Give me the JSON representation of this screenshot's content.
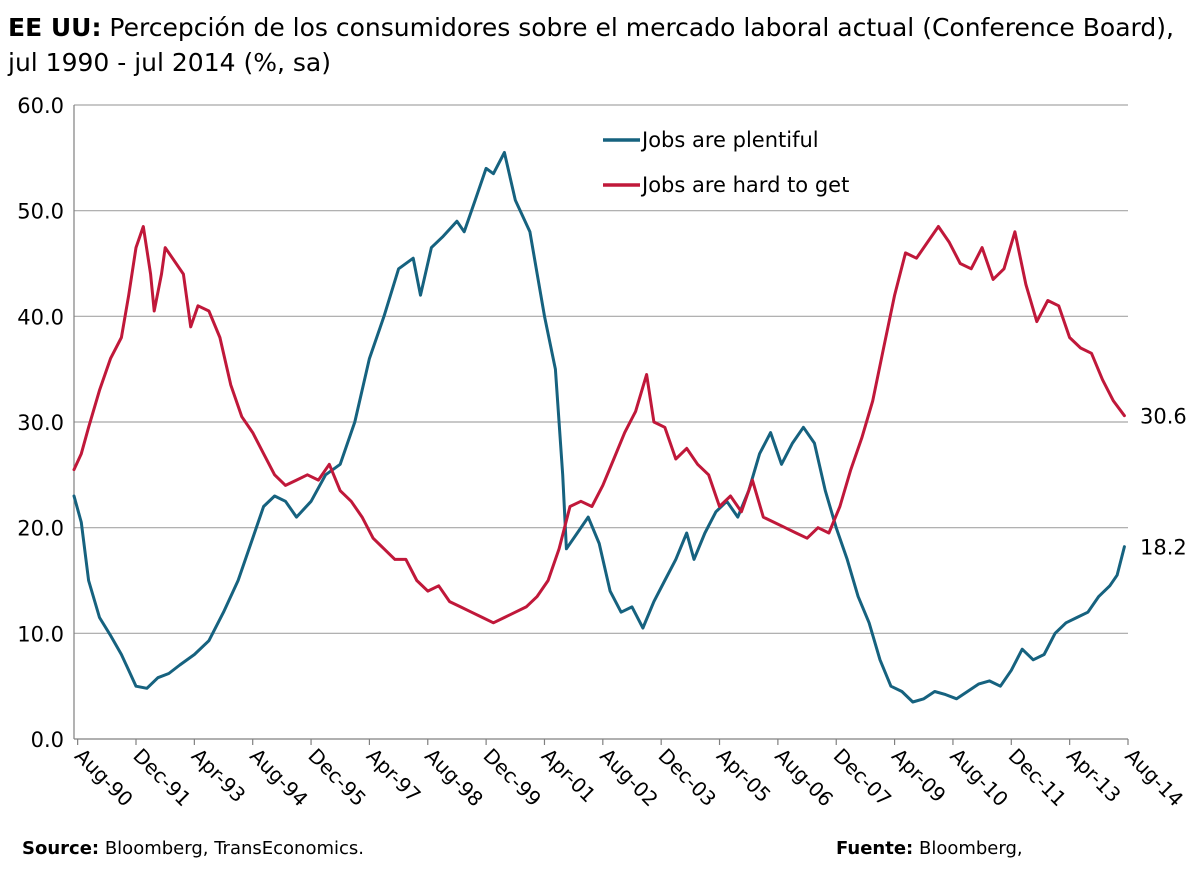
{
  "header": {
    "title_bold": "EE UU:",
    "title_rest": " Percepción de los consumidores sobre el mercado laboral actual (Conference Board), jul 1990 - jul 2014 (%, sa)"
  },
  "footer": {
    "source_label": "Source:",
    "source_text": " Bloomberg, TransEconomics.",
    "fuente_label": "Fuente:",
    "fuente_text": " Bloomberg,"
  },
  "colors": {
    "plentiful": "#16627f",
    "hard": "#c0183a",
    "grid": "#a6a6a6"
  },
  "chart_data": {
    "type": "line",
    "title": "EE UU: Percepción de los consumidores sobre el mercado laboral actual (Conference Board), jul 1990 - jul 2014 (%, sa)",
    "xlabel": "",
    "ylabel": "",
    "x_start": "1990-07",
    "x_end": "2014-07",
    "ylim": [
      0,
      60
    ],
    "yticks": [
      0,
      10,
      20,
      30,
      40,
      50,
      60
    ],
    "ytick_labels": [
      "0.0",
      "10.0",
      "20.0",
      "30.0",
      "40.0",
      "50.0",
      "60.0"
    ],
    "xticks": [
      {
        "date": "1990-08",
        "label": "Aug-90"
      },
      {
        "date": "1991-12",
        "label": "Dec-91"
      },
      {
        "date": "1993-04",
        "label": "Apr-93"
      },
      {
        "date": "1994-08",
        "label": "Aug-94"
      },
      {
        "date": "1995-12",
        "label": "Dec-95"
      },
      {
        "date": "1997-04",
        "label": "Apr-97"
      },
      {
        "date": "1998-08",
        "label": "Aug-98"
      },
      {
        "date": "1999-12",
        "label": "Dec-99"
      },
      {
        "date": "2001-04",
        "label": "Apr-01"
      },
      {
        "date": "2002-08",
        "label": "Aug-02"
      },
      {
        "date": "2003-12",
        "label": "Dec-03"
      },
      {
        "date": "2005-04",
        "label": "Apr-05"
      },
      {
        "date": "2006-08",
        "label": "Aug-06"
      },
      {
        "date": "2007-12",
        "label": "Dec-07"
      },
      {
        "date": "2009-04",
        "label": "Apr-09"
      },
      {
        "date": "2010-08",
        "label": "Aug-10"
      },
      {
        "date": "2011-12",
        "label": "Dec-11"
      },
      {
        "date": "2013-04",
        "label": "Apr-13"
      },
      {
        "date": "2014-08",
        "label": "Aug-14"
      }
    ],
    "grid": true,
    "legend_position": "top-center",
    "series": [
      {
        "name": "Jobs are plentiful",
        "color_key": "plentiful",
        "end_label": "18.2",
        "points": [
          [
            "1990-07",
            23.0
          ],
          [
            "1990-09",
            20.5
          ],
          [
            "1990-11",
            15.0
          ],
          [
            "1991-02",
            11.5
          ],
          [
            "1991-05",
            9.8
          ],
          [
            "1991-08",
            8.0
          ],
          [
            "1991-10",
            6.5
          ],
          [
            "1991-12",
            5.0
          ],
          [
            "1992-03",
            4.8
          ],
          [
            "1992-06",
            5.8
          ],
          [
            "1992-09",
            6.2
          ],
          [
            "1992-12",
            7.0
          ],
          [
            "1993-04",
            8.0
          ],
          [
            "1993-08",
            9.3
          ],
          [
            "1993-12",
            12.0
          ],
          [
            "1994-04",
            15.0
          ],
          [
            "1994-08",
            19.0
          ],
          [
            "1994-11",
            22.0
          ],
          [
            "1995-02",
            23.0
          ],
          [
            "1995-05",
            22.5
          ],
          [
            "1995-08",
            21.0
          ],
          [
            "1995-12",
            22.5
          ],
          [
            "1996-04",
            25.0
          ],
          [
            "1996-08",
            26.0
          ],
          [
            "1996-12",
            30.0
          ],
          [
            "1997-04",
            36.0
          ],
          [
            "1997-08",
            40.0
          ],
          [
            "1997-12",
            44.5
          ],
          [
            "1998-04",
            45.5
          ],
          [
            "1998-06",
            42.0
          ],
          [
            "1998-09",
            46.5
          ],
          [
            "1998-12",
            47.5
          ],
          [
            "1999-04",
            49.0
          ],
          [
            "1999-06",
            48.0
          ],
          [
            "1999-09",
            51.0
          ],
          [
            "1999-12",
            54.0
          ],
          [
            "2000-02",
            53.5
          ],
          [
            "2000-05",
            55.5
          ],
          [
            "2000-08",
            51.0
          ],
          [
            "2000-12",
            48.0
          ],
          [
            "2001-02",
            44.0
          ],
          [
            "2001-04",
            40.0
          ],
          [
            "2001-07",
            35.0
          ],
          [
            "2001-09",
            25.0
          ],
          [
            "2001-10",
            18.0
          ],
          [
            "2002-01",
            19.5
          ],
          [
            "2002-04",
            21.0
          ],
          [
            "2002-07",
            18.5
          ],
          [
            "2002-10",
            14.0
          ],
          [
            "2003-01",
            12.0
          ],
          [
            "2003-04",
            12.5
          ],
          [
            "2003-07",
            10.5
          ],
          [
            "2003-10",
            13.0
          ],
          [
            "2004-01",
            15.0
          ],
          [
            "2004-04",
            17.0
          ],
          [
            "2004-07",
            19.5
          ],
          [
            "2004-09",
            17.0
          ],
          [
            "2004-12",
            19.5
          ],
          [
            "2005-03",
            21.5
          ],
          [
            "2005-06",
            22.5
          ],
          [
            "2005-09",
            21.0
          ],
          [
            "2005-12",
            23.5
          ],
          [
            "2006-03",
            27.0
          ],
          [
            "2006-06",
            29.0
          ],
          [
            "2006-09",
            26.0
          ],
          [
            "2006-12",
            28.0
          ],
          [
            "2007-03",
            29.5
          ],
          [
            "2007-06",
            28.0
          ],
          [
            "2007-09",
            23.5
          ],
          [
            "2007-12",
            20.0
          ],
          [
            "2008-03",
            17.0
          ],
          [
            "2008-06",
            13.5
          ],
          [
            "2008-09",
            11.0
          ],
          [
            "2008-12",
            7.5
          ],
          [
            "2009-03",
            5.0
          ],
          [
            "2009-06",
            4.5
          ],
          [
            "2009-09",
            3.5
          ],
          [
            "2009-12",
            3.8
          ],
          [
            "2010-03",
            4.5
          ],
          [
            "2010-06",
            4.2
          ],
          [
            "2010-09",
            3.8
          ],
          [
            "2010-12",
            4.5
          ],
          [
            "2011-03",
            5.2
          ],
          [
            "2011-06",
            5.5
          ],
          [
            "2011-09",
            5.0
          ],
          [
            "2011-12",
            6.5
          ],
          [
            "2012-03",
            8.5
          ],
          [
            "2012-06",
            7.5
          ],
          [
            "2012-09",
            8.0
          ],
          [
            "2012-12",
            10.0
          ],
          [
            "2013-03",
            11.0
          ],
          [
            "2013-06",
            11.5
          ],
          [
            "2013-09",
            12.0
          ],
          [
            "2013-12",
            13.5
          ],
          [
            "2014-03",
            14.5
          ],
          [
            "2014-05",
            15.5
          ],
          [
            "2014-07",
            18.2
          ]
        ]
      },
      {
        "name": "Jobs are hard to get",
        "color_key": "hard",
        "end_label": "30.6",
        "points": [
          [
            "1990-07",
            25.5
          ],
          [
            "1990-09",
            27.0
          ],
          [
            "1990-11",
            29.5
          ],
          [
            "1991-02",
            33.0
          ],
          [
            "1991-05",
            36.0
          ],
          [
            "1991-08",
            38.0
          ],
          [
            "1991-10",
            42.0
          ],
          [
            "1991-12",
            46.5
          ],
          [
            "1992-02",
            48.5
          ],
          [
            "1992-04",
            44.0
          ],
          [
            "1992-05",
            40.5
          ],
          [
            "1992-07",
            44.0
          ],
          [
            "1992-08",
            46.5
          ],
          [
            "1992-10",
            45.5
          ],
          [
            "1993-01",
            44.0
          ],
          [
            "1993-03",
            39.0
          ],
          [
            "1993-05",
            41.0
          ],
          [
            "1993-08",
            40.5
          ],
          [
            "1993-11",
            38.0
          ],
          [
            "1994-02",
            33.5
          ],
          [
            "1994-05",
            30.5
          ],
          [
            "1994-08",
            29.0
          ],
          [
            "1994-11",
            27.0
          ],
          [
            "1995-02",
            25.0
          ],
          [
            "1995-05",
            24.0
          ],
          [
            "1995-08",
            24.5
          ],
          [
            "1995-11",
            25.0
          ],
          [
            "1996-02",
            24.5
          ],
          [
            "1996-05",
            26.0
          ],
          [
            "1996-08",
            23.5
          ],
          [
            "1996-11",
            22.5
          ],
          [
            "1997-02",
            21.0
          ],
          [
            "1997-05",
            19.0
          ],
          [
            "1997-08",
            18.0
          ],
          [
            "1997-11",
            17.0
          ],
          [
            "1998-02",
            17.0
          ],
          [
            "1998-05",
            15.0
          ],
          [
            "1998-08",
            14.0
          ],
          [
            "1998-11",
            14.5
          ],
          [
            "1999-02",
            13.0
          ],
          [
            "1999-05",
            12.5
          ],
          [
            "1999-08",
            12.0
          ],
          [
            "1999-11",
            11.5
          ],
          [
            "2000-02",
            11.0
          ],
          [
            "2000-05",
            11.5
          ],
          [
            "2000-08",
            12.0
          ],
          [
            "2000-11",
            12.5
          ],
          [
            "2001-02",
            13.5
          ],
          [
            "2001-05",
            15.0
          ],
          [
            "2001-08",
            18.0
          ],
          [
            "2001-11",
            22.0
          ],
          [
            "2002-02",
            22.5
          ],
          [
            "2002-05",
            22.0
          ],
          [
            "2002-08",
            24.0
          ],
          [
            "2002-11",
            26.5
          ],
          [
            "2003-02",
            29.0
          ],
          [
            "2003-05",
            31.0
          ],
          [
            "2003-08",
            34.5
          ],
          [
            "2003-10",
            30.0
          ],
          [
            "2004-01",
            29.5
          ],
          [
            "2004-04",
            26.5
          ],
          [
            "2004-07",
            27.5
          ],
          [
            "2004-10",
            26.0
          ],
          [
            "2005-01",
            25.0
          ],
          [
            "2005-04",
            22.0
          ],
          [
            "2005-07",
            23.0
          ],
          [
            "2005-10",
            21.5
          ],
          [
            "2006-01",
            24.5
          ],
          [
            "2006-04",
            21.0
          ],
          [
            "2006-07",
            20.5
          ],
          [
            "2006-10",
            20.0
          ],
          [
            "2007-01",
            19.5
          ],
          [
            "2007-04",
            19.0
          ],
          [
            "2007-07",
            20.0
          ],
          [
            "2007-10",
            19.5
          ],
          [
            "2008-01",
            22.0
          ],
          [
            "2008-04",
            25.5
          ],
          [
            "2008-07",
            28.5
          ],
          [
            "2008-10",
            32.0
          ],
          [
            "2009-01",
            37.0
          ],
          [
            "2009-04",
            42.0
          ],
          [
            "2009-07",
            46.0
          ],
          [
            "2009-10",
            45.5
          ],
          [
            "2010-01",
            47.0
          ],
          [
            "2010-04",
            48.5
          ],
          [
            "2010-07",
            47.0
          ],
          [
            "2010-10",
            45.0
          ],
          [
            "2011-01",
            44.5
          ],
          [
            "2011-04",
            46.5
          ],
          [
            "2011-07",
            43.5
          ],
          [
            "2011-10",
            44.5
          ],
          [
            "2012-01",
            48.0
          ],
          [
            "2012-04",
            43.0
          ],
          [
            "2012-07",
            39.5
          ],
          [
            "2012-10",
            41.5
          ],
          [
            "2013-01",
            41.0
          ],
          [
            "2013-04",
            38.0
          ],
          [
            "2013-07",
            37.0
          ],
          [
            "2013-10",
            36.5
          ],
          [
            "2014-01",
            34.0
          ],
          [
            "2014-04",
            32.0
          ],
          [
            "2014-07",
            30.6
          ]
        ]
      }
    ]
  }
}
